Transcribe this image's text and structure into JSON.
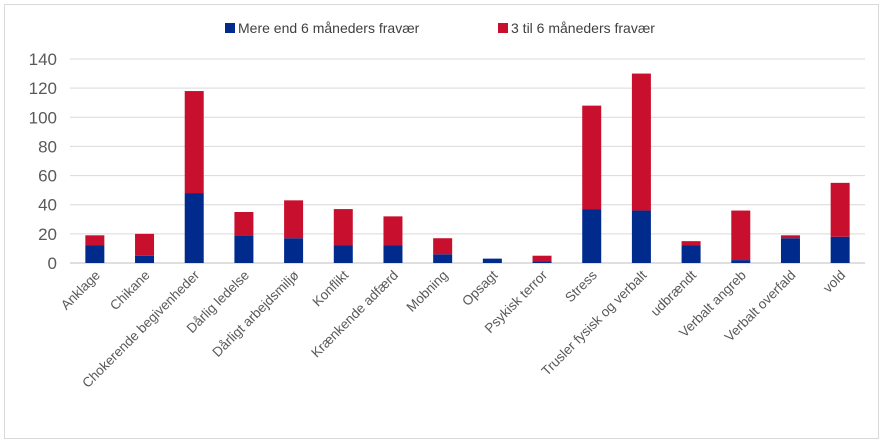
{
  "chart_data": {
    "type": "bar",
    "stacked": true,
    "title": "",
    "xlabel": "",
    "ylabel": "",
    "ylim": [
      0,
      140
    ],
    "yticks": [
      0,
      20,
      40,
      60,
      80,
      100,
      120,
      140
    ],
    "grid": "horizontal",
    "legend_position": "top",
    "categories": [
      "Anklage",
      "Chikane",
      "Chokerende begivenheder",
      "Dårlig ledelse",
      "Dårligt arbejdsmiljø",
      "Konflikt",
      "Krænkende adfærd",
      "Mobning",
      "Opsagt",
      "Psykisk terror",
      "Stress",
      "Trusler fysisk og verbalt",
      "udbrændt",
      "Verbalt angreb",
      "Verbalt overfald",
      "vold"
    ],
    "series": [
      {
        "name": "Mere end 6 måneders fravær",
        "color": "#002b8c",
        "values": [
          12,
          5,
          48,
          19,
          17,
          12,
          12,
          6,
          3,
          1,
          37,
          36,
          12,
          2,
          17,
          18
        ]
      },
      {
        "name": "3 til 6 måneders fravær",
        "color": "#c8102e",
        "values": [
          7,
          15,
          70,
          16,
          26,
          25,
          20,
          11,
          0,
          4,
          71,
          94,
          3,
          34,
          2,
          37
        ]
      }
    ]
  }
}
